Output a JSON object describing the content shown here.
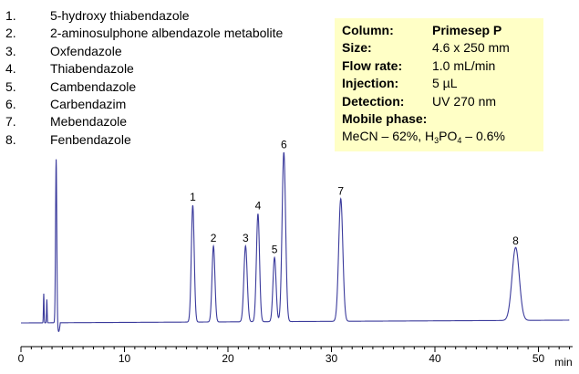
{
  "legend": [
    {
      "num": "1.",
      "name": "5-hydroxy thiabendazole"
    },
    {
      "num": "2.",
      "name": "2-aminosulphone albendazole metabolite"
    },
    {
      "num": "3.",
      "name": "Oxfendazole"
    },
    {
      "num": "4.",
      "name": "Thiabendazole"
    },
    {
      "num": "5.",
      "name": "Cambendazole"
    },
    {
      "num": "6.",
      "name": "Carbendazim"
    },
    {
      "num": "7.",
      "name": "Mebendazole"
    },
    {
      "num": "8.",
      "name": "Fenbendazole"
    }
  ],
  "conditions": {
    "column_label": "Column:",
    "column_value": "Primesep P",
    "size_label": "Size:",
    "size_value": "4.6 x 250 mm",
    "flow_label": "Flow rate:",
    "flow_value": "1.0 mL/min",
    "injection_label": "Injection:",
    "injection_value": "5 µL",
    "detection_label": "Detection:",
    "detection_value": "UV 270 nm",
    "mobile_phase_label": "Mobile phase:",
    "mp_part1": "MeCN – 62%, H",
    "mp_sub1": "3",
    "mp_part2": "PO",
    "mp_sub2": "4",
    "mp_part3": " – 0.6%"
  },
  "chart_data": {
    "type": "line",
    "xlabel": "min",
    "xlim": [
      0,
      53
    ],
    "x_ticks": [
      0,
      10,
      20,
      30,
      40,
      50
    ],
    "line_color": "#3b3b9c",
    "baseline": 0,
    "solvent_front": [
      {
        "x": 2.2,
        "y": 10
      },
      {
        "x": 2.5,
        "y": 8
      },
      {
        "x": 3.4,
        "y": 56
      }
    ],
    "peaks": [
      {
        "label": "1",
        "time": 16.6,
        "height": 40,
        "width": 0.14
      },
      {
        "label": "2",
        "time": 18.6,
        "height": 26,
        "width": 0.14
      },
      {
        "label": "3",
        "time": 21.7,
        "height": 26,
        "width": 0.16
      },
      {
        "label": "4",
        "time": 22.9,
        "height": 37,
        "width": 0.15
      },
      {
        "label": "5",
        "time": 24.5,
        "height": 22,
        "width": 0.15
      },
      {
        "label": "6",
        "time": 25.4,
        "height": 58,
        "width": 0.17
      },
      {
        "label": "7",
        "time": 30.9,
        "height": 42,
        "width": 0.2
      },
      {
        "label": "8",
        "time": 47.8,
        "height": 25,
        "width": 0.35
      }
    ]
  }
}
